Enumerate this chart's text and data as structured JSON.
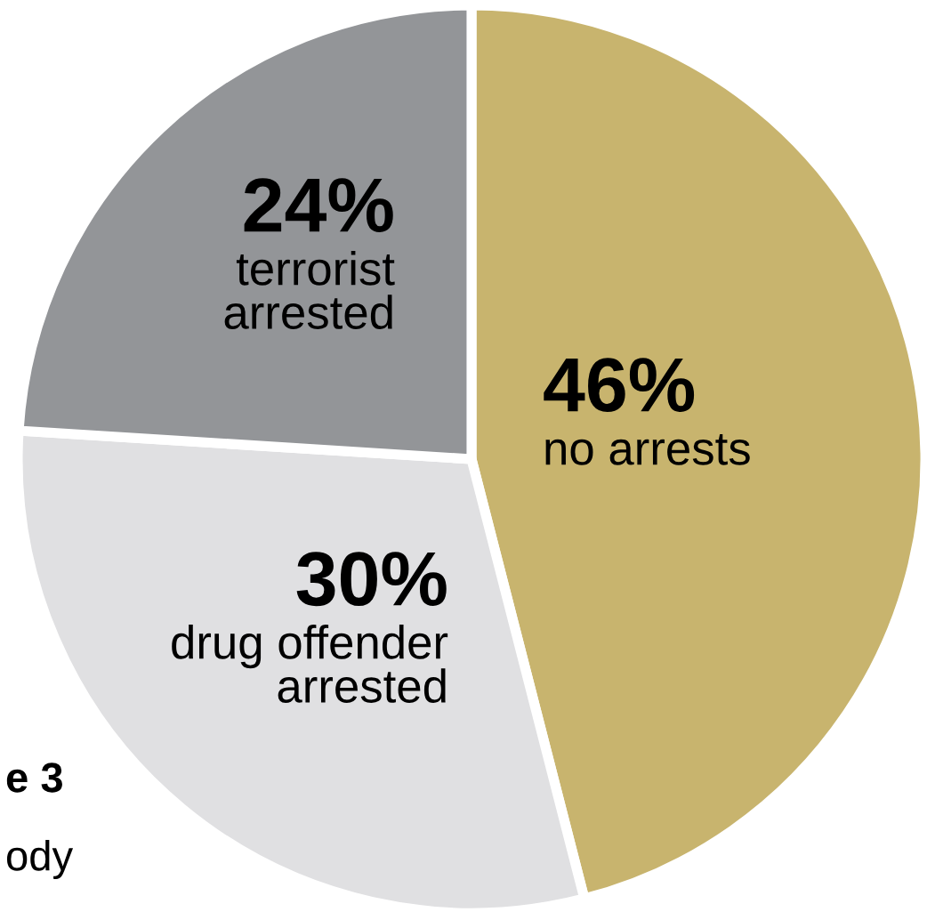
{
  "chart_data": {
    "type": "pie",
    "categories": [
      "no arrests",
      "drug offender\narrested",
      "terrorist\narrested"
    ],
    "values": [
      46,
      30,
      24
    ],
    "value_labels": [
      "46%",
      "30%",
      "24%"
    ],
    "colors": [
      "#c8b46e",
      "#e0e0e2",
      "#939598"
    ],
    "annotations": [
      "e 3",
      "ody"
    ]
  }
}
